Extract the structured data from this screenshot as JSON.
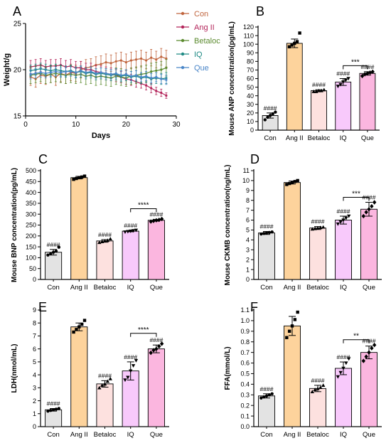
{
  "chart_data": [
    {
      "panel": "A",
      "type": "line",
      "title": "",
      "xlabel": "Days",
      "ylabel": "Weight/g",
      "xlim": [
        0,
        30
      ],
      "ylim": [
        15,
        25
      ],
      "xticks": [
        "0",
        "10",
        "20",
        "30"
      ],
      "yticks": [
        "15",
        "20",
        "25"
      ],
      "grid": false,
      "legend_position": "top-right",
      "x": [
        1,
        2,
        3,
        4,
        5,
        6,
        7,
        8,
        9,
        10,
        11,
        12,
        13,
        14,
        15,
        16,
        17,
        18,
        19,
        20,
        21,
        22,
        23,
        24,
        25,
        26,
        27,
        28
      ],
      "series": [
        {
          "name": "Con",
          "color": "#c0653e",
          "marker": "circle",
          "values": [
            19.2,
            19.0,
            19.4,
            19.3,
            19.5,
            19.2,
            19.6,
            19.4,
            19.7,
            19.6,
            20.0,
            20.2,
            20.3,
            20.5,
            20.6,
            20.8,
            20.7,
            20.9,
            21.0,
            20.8,
            21.0,
            21.1,
            21.2,
            21.0,
            21.3,
            21.1,
            21.4,
            21.2
          ],
          "errors": [
            0.9,
            0.9,
            0.9,
            0.9,
            0.9,
            0.9,
            0.9,
            0.9,
            0.9,
            0.9,
            0.9,
            0.9,
            0.9,
            0.9,
            0.9,
            0.9,
            0.9,
            0.9,
            0.9,
            0.9,
            0.9,
            0.9,
            0.9,
            0.9,
            0.9,
            0.9,
            0.9,
            0.9
          ]
        },
        {
          "name": "Ang II",
          "color": "#b3245a",
          "marker": "circle",
          "values": [
            20.3,
            20.4,
            20.5,
            20.3,
            20.4,
            20.4,
            20.5,
            20.3,
            20.4,
            20.2,
            20.2,
            20.0,
            20.0,
            19.8,
            19.7,
            19.6,
            19.5,
            19.4,
            19.2,
            19.0,
            18.9,
            18.7,
            18.5,
            18.3,
            18.0,
            17.7,
            17.5,
            17.2
          ],
          "errors": [
            0.7,
            0.7,
            0.7,
            0.7,
            0.7,
            0.7,
            0.7,
            0.7,
            0.7,
            0.7,
            0.7,
            0.7,
            0.7,
            0.7,
            0.7,
            0.7,
            0.7,
            0.7,
            0.6,
            0.6,
            0.6,
            0.6,
            0.5,
            0.5,
            0.5,
            0.4,
            0.4,
            0.3
          ]
        },
        {
          "name": "Betaloc",
          "color": "#5b8a2e",
          "marker": "circle",
          "values": [
            19.4,
            19.5,
            19.6,
            19.4,
            19.5,
            19.6,
            19.5,
            19.4,
            19.5,
            19.4,
            19.5,
            19.3,
            19.4,
            19.2,
            19.3,
            19.2,
            19.1,
            19.3,
            19.2,
            19.1,
            19.3,
            19.4,
            19.5,
            19.6,
            19.8,
            19.9,
            20.0,
            20.2
          ],
          "errors": [
            0.9,
            0.9,
            0.9,
            0.9,
            0.9,
            0.9,
            0.9,
            0.9,
            0.9,
            0.9,
            0.9,
            0.9,
            0.9,
            0.9,
            0.9,
            0.9,
            0.9,
            0.9,
            0.9,
            0.9,
            0.9,
            0.9,
            0.9,
            0.9,
            0.9,
            0.9,
            0.9,
            0.9
          ]
        },
        {
          "name": "IQ",
          "color": "#1f8a84",
          "marker": "circle",
          "values": [
            19.9,
            20.0,
            20.1,
            20.0,
            19.9,
            20.0,
            19.9,
            19.8,
            19.9,
            19.7,
            19.8,
            19.6,
            19.7,
            19.5,
            19.6,
            19.5,
            19.4,
            19.5,
            19.3,
            19.4,
            19.2,
            19.3,
            19.1,
            19.2,
            19.0,
            19.1,
            19.0,
            19.1
          ],
          "errors": [
            0.6,
            0.6,
            0.6,
            0.6,
            0.6,
            0.6,
            0.6,
            0.6,
            0.6,
            0.6,
            0.6,
            0.6,
            0.6,
            0.6,
            0.6,
            0.6,
            0.6,
            0.6,
            0.6,
            0.6,
            0.6,
            0.6,
            0.6,
            0.6,
            0.6,
            0.6,
            0.6,
            0.6
          ]
        },
        {
          "name": "Que",
          "color": "#4a86c8",
          "marker": "circle",
          "values": [
            19.5,
            19.6,
            19.7,
            19.6,
            19.7,
            19.8,
            19.7,
            19.8,
            19.8,
            19.7,
            19.9,
            19.7,
            19.8,
            19.6,
            19.7,
            19.6,
            19.5,
            19.6,
            19.4,
            19.5,
            19.3,
            19.4,
            19.2,
            19.3,
            19.1,
            19.2,
            19.0,
            18.9
          ],
          "errors": [
            0.5,
            0.5,
            0.5,
            0.5,
            0.5,
            0.5,
            0.5,
            0.5,
            0.5,
            0.5,
            0.5,
            0.5,
            0.5,
            0.5,
            0.5,
            0.5,
            0.5,
            0.5,
            0.5,
            0.5,
            0.5,
            0.5,
            0.5,
            0.5,
            0.5,
            0.5,
            0.5,
            0.5
          ]
        }
      ]
    },
    {
      "panel": "B",
      "type": "bar",
      "title": "",
      "xlabel": "",
      "ylabel": "Mouse ANP concentration(pg/mL)",
      "ylim": [
        0,
        120
      ],
      "yticks": [
        "0",
        "10",
        "20",
        "30",
        "40",
        "50",
        "60",
        "70",
        "80",
        "90",
        "100",
        "110",
        "120"
      ],
      "categories": [
        "Con",
        "Ang II",
        "Betaloc",
        "IQ",
        "Que"
      ],
      "values": [
        17,
        101,
        46,
        56,
        66
      ],
      "errors": [
        3,
        5,
        1,
        4,
        2
      ],
      "points": [
        [
          12,
          15,
          17,
          19,
          21
        ],
        [
          97,
          99,
          101,
          103,
          113
        ],
        [
          45,
          45,
          46,
          46,
          47
        ],
        [
          51,
          53,
          56,
          58,
          60
        ],
        [
          63,
          65,
          66,
          67,
          68
        ]
      ],
      "markers": [
        "circle",
        "square",
        "triangle-up",
        "triangle-down",
        "diamond"
      ],
      "bar_colors": [
        "#e3e3e3",
        "#fdd39c",
        "#fde1df",
        "#f8c9fb",
        "#fbb6df"
      ],
      "bar_labels": [
        "####",
        "",
        "####",
        "####",
        "####"
      ],
      "comparison": {
        "from": "IQ",
        "to": "Que",
        "label": "***",
        "y": 75
      }
    },
    {
      "panel": "C",
      "type": "bar",
      "title": "",
      "xlabel": "",
      "ylabel": "Mouse BNP concentration(pg/mL)",
      "ylim": [
        0,
        500
      ],
      "yticks": [
        "0",
        "50",
        "100",
        "150",
        "200",
        "250",
        "300",
        "350",
        "400",
        "450",
        "500"
      ],
      "categories": [
        "Con",
        "Ang II",
        "Betaloc",
        "IQ",
        "Que"
      ],
      "values": [
        125,
        468,
        177,
        222,
        272
      ],
      "errors": [
        13,
        6,
        6,
        3,
        4
      ],
      "points": [
        [
          112,
          118,
          125,
          130,
          148
        ],
        [
          460,
          464,
          468,
          471,
          475
        ],
        [
          170,
          174,
          177,
          180,
          187
        ],
        [
          218,
          220,
          222,
          224,
          226
        ],
        [
          266,
          269,
          272,
          274,
          278
        ]
      ],
      "markers": [
        "circle",
        "square",
        "triangle-up",
        "triangle-down",
        "diamond"
      ],
      "bar_colors": [
        "#e3e3e3",
        "#fdd39c",
        "#fde1df",
        "#f8c9fb",
        "#fbb6df"
      ],
      "bar_labels": [
        "####",
        "",
        "####",
        "####",
        "####"
      ],
      "comparison": {
        "from": "IQ",
        "to": "Que",
        "label": "****",
        "y": 325
      }
    },
    {
      "panel": "D",
      "type": "bar",
      "title": "",
      "xlabel": "",
      "ylabel": "Mouse CKMB concentration(ng/mL)",
      "ylim": [
        0,
        11
      ],
      "yticks": [
        "0",
        "1",
        "2",
        "3",
        "4",
        "5",
        "6",
        "7",
        "8",
        "9",
        "10",
        "11"
      ],
      "categories": [
        "Con",
        "Ang II",
        "Betaloc",
        "IQ",
        "Que"
      ],
      "values": [
        4.7,
        9.8,
        5.2,
        6.0,
        7.1
      ],
      "errors": [
        0.15,
        0.15,
        0.15,
        0.4,
        0.7
      ],
      "points": [
        [
          4.6,
          4.65,
          4.7,
          4.75,
          4.8
        ],
        [
          9.6,
          9.7,
          9.8,
          9.9,
          10.0
        ],
        [
          5.1,
          5.15,
          5.2,
          5.25,
          5.3
        ],
        [
          5.6,
          5.8,
          6.0,
          6.2,
          6.4
        ],
        [
          6.4,
          6.8,
          7.1,
          7.4,
          7.8
        ]
      ],
      "markers": [
        "circle",
        "square",
        "triangle-up",
        "triangle-down",
        "diamond"
      ],
      "bar_colors": [
        "#e3e3e3",
        "#fdd39c",
        "#fde1df",
        "#f8c9fb",
        "#fbb6df"
      ],
      "bar_labels": [
        "####",
        "",
        "####",
        "####",
        "####"
      ],
      "comparison": {
        "from": "IQ",
        "to": "Que",
        "label": "***",
        "y": 8.3
      }
    },
    {
      "panel": "E",
      "type": "bar",
      "title": "",
      "xlabel": "",
      "ylabel": "LDH(nmol/mL)",
      "ylim": [
        0,
        9
      ],
      "yticks": [
        "0",
        "1",
        "2",
        "3",
        "4",
        "5",
        "6",
        "7",
        "8",
        "9"
      ],
      "categories": [
        "Con",
        "Ang II",
        "Betaloc",
        "IQ",
        "Que"
      ],
      "values": [
        1.3,
        7.7,
        3.3,
        4.3,
        6.0
      ],
      "errors": [
        0.1,
        0.3,
        0.25,
        0.7,
        0.3
      ],
      "points": [
        [
          1.2,
          1.25,
          1.3,
          1.35,
          1.4
        ],
        [
          7.3,
          7.5,
          7.7,
          7.9,
          8.2
        ],
        [
          3.0,
          3.2,
          3.3,
          3.5,
          3.7
        ],
        [
          3.6,
          3.8,
          4.3,
          4.7,
          5.1
        ],
        [
          5.7,
          5.9,
          6.0,
          6.2,
          6.4
        ]
      ],
      "markers": [
        "circle",
        "square",
        "triangle-up",
        "triangle-down",
        "diamond"
      ],
      "bar_colors": [
        "#e3e3e3",
        "#fdd39c",
        "#fde1df",
        "#f8c9fb",
        "#fbb6df"
      ],
      "bar_labels": [
        "####",
        "",
        "####",
        "####",
        "####"
      ],
      "comparison": {
        "from": "IQ",
        "to": "Que",
        "label": "****",
        "y": 7.2
      }
    },
    {
      "panel": "F",
      "type": "bar",
      "title": "",
      "xlabel": "",
      "ylabel": "FFA(mmol/L)",
      "ylim": [
        0,
        1.1
      ],
      "yticks": [
        "0.0",
        "0.1",
        "0.2",
        "0.3",
        "0.4",
        "0.5",
        "0.6",
        "0.7",
        "0.8",
        "0.9",
        "1.0",
        "1.1"
      ],
      "categories": [
        "Con",
        "Ang II",
        "Betaloc",
        "IQ",
        "Que"
      ],
      "values": [
        0.29,
        0.95,
        0.36,
        0.55,
        0.7
      ],
      "errors": [
        0.02,
        0.09,
        0.03,
        0.06,
        0.06
      ],
      "points": [
        [
          0.27,
          0.28,
          0.29,
          0.3,
          0.31
        ],
        [
          0.84,
          0.9,
          0.95,
          1.01,
          1.08
        ],
        [
          0.33,
          0.35,
          0.36,
          0.37,
          0.39
        ],
        [
          0.47,
          0.51,
          0.55,
          0.6,
          0.64
        ],
        [
          0.62,
          0.66,
          0.7,
          0.74,
          0.77
        ]
      ],
      "markers": [
        "circle",
        "square",
        "triangle-up",
        "triangle-down",
        "diamond"
      ],
      "bar_colors": [
        "#e3e3e3",
        "#fdd39c",
        "#fde1df",
        "#f8c9fb",
        "#fbb6df"
      ],
      "bar_labels": [
        "####",
        "",
        "####",
        "####",
        "####"
      ],
      "comparison": {
        "from": "IQ",
        "to": "Que",
        "label": "**",
        "y": 0.82
      }
    }
  ]
}
